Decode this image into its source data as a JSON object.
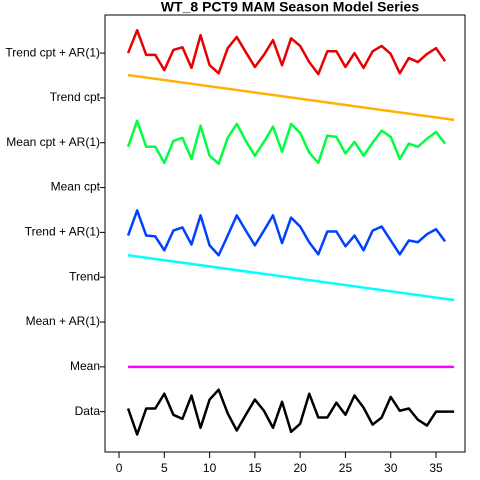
{
  "chart_data": {
    "type": "line",
    "title": "WT_8 PCT9 MAM Season Model Series",
    "xlim": [
      -1.55,
      38.2
    ],
    "xticks": [
      0,
      5,
      10,
      15,
      20,
      25,
      30,
      35
    ],
    "ylim": [
      0.1,
      9.85
    ],
    "yticks": [
      {
        "value": 1,
        "label": "Data"
      },
      {
        "value": 2,
        "label": "Mean"
      },
      {
        "value": 3,
        "label": "Mean + AR(1)"
      },
      {
        "value": 4,
        "label": "Trend"
      },
      {
        "value": 5,
        "label": "Trend + AR(1)"
      },
      {
        "value": 6,
        "label": "Mean cpt"
      },
      {
        "value": 7,
        "label": "Mean cpt + AR(1)"
      },
      {
        "value": 8,
        "label": "Trend cpt"
      },
      {
        "value": 9,
        "label": "Trend cpt + AR(1)"
      }
    ],
    "series": [
      {
        "name": "Data",
        "color": "#000000",
        "x": [
          1,
          2,
          3,
          4,
          5,
          6,
          7,
          8,
          9,
          10,
          11,
          12,
          13,
          14,
          15,
          16,
          17,
          18,
          19,
          20,
          21,
          22,
          23,
          24,
          25,
          26,
          27,
          28,
          29,
          30,
          31,
          32,
          33,
          34,
          35,
          36,
          37
        ],
        "values": [
          1.07,
          0.49,
          1.07,
          1.07,
          1.4,
          0.93,
          0.84,
          1.36,
          0.64,
          1.27,
          1.49,
          0.96,
          0.58,
          0.93,
          1.27,
          1.02,
          0.64,
          1.22,
          0.55,
          0.73,
          1.4,
          0.87,
          0.87,
          1.2,
          0.93,
          1.36,
          1.09,
          0.71,
          0.87,
          1.33,
          1.02,
          1.07,
          0.82,
          0.69,
          1.0,
          1.0,
          1.0
        ]
      },
      {
        "name": "Mean",
        "color": "#ff00ff",
        "x": [
          1,
          37
        ],
        "values": [
          2,
          2
        ]
      },
      {
        "name": "Trend",
        "color": "#00ffff",
        "x": [
          1,
          37
        ],
        "values": [
          4.49,
          3.49
        ]
      },
      {
        "name": "Trend + AR(1)",
        "color": "#0040ff",
        "x": [
          1,
          2,
          3,
          4,
          5,
          6,
          7,
          8,
          9,
          10,
          11,
          12,
          13,
          14,
          15,
          16,
          17,
          18,
          19,
          20,
          21,
          22,
          23,
          24,
          25,
          26,
          27,
          28,
          29,
          30,
          31,
          32,
          33,
          34,
          35,
          36
        ],
        "values": [
          4.93,
          5.49,
          4.93,
          4.91,
          4.6,
          5.04,
          5.11,
          4.73,
          5.38,
          4.71,
          4.49,
          4.93,
          5.38,
          5.04,
          4.71,
          5.04,
          5.38,
          4.76,
          5.33,
          5.13,
          4.78,
          4.51,
          5.02,
          5.02,
          4.69,
          4.93,
          4.6,
          5.04,
          5.13,
          4.82,
          4.51,
          4.82,
          4.78,
          4.96,
          5.07,
          4.8
        ]
      },
      {
        "name": "Mean cpt + AR(1)",
        "color": "#00ff40",
        "x": [
          1,
          2,
          3,
          4,
          5,
          6,
          7,
          8,
          9,
          10,
          11,
          12,
          13,
          14,
          15,
          16,
          17,
          18,
          19,
          20,
          21,
          22,
          23,
          24,
          25,
          26,
          27,
          28,
          29,
          30,
          31,
          32,
          33,
          34,
          35,
          36
        ],
        "values": [
          6.91,
          7.49,
          6.91,
          6.91,
          6.55,
          7.04,
          7.11,
          6.64,
          7.38,
          6.71,
          6.53,
          7.11,
          7.42,
          7.04,
          6.71,
          7.02,
          7.36,
          6.8,
          7.42,
          7.22,
          6.78,
          6.55,
          7.16,
          7.13,
          6.76,
          7.02,
          6.71,
          7.0,
          7.27,
          7.13,
          6.64,
          6.98,
          6.91,
          7.09,
          7.24,
          6.98
        ]
      },
      {
        "name": "Trend cpt",
        "color": "#ffb000",
        "x": [
          1,
          37
        ],
        "values": [
          8.51,
          7.51
        ]
      },
      {
        "name": "Trend cpt + AR(1)",
        "color": "#e80000",
        "x": [
          1,
          2,
          3,
          4,
          5,
          6,
          7,
          8,
          9,
          10,
          11,
          12,
          13,
          14,
          15,
          16,
          17,
          18,
          19,
          20,
          21,
          22,
          23,
          24,
          25,
          26,
          27,
          28,
          29,
          30,
          31,
          32,
          33,
          34,
          35,
          36
        ],
        "values": [
          9.0,
          9.51,
          8.96,
          8.96,
          8.62,
          9.07,
          9.13,
          8.67,
          9.4,
          8.73,
          8.55,
          9.11,
          9.36,
          9.02,
          8.69,
          8.96,
          9.29,
          8.73,
          9.33,
          9.16,
          8.8,
          8.53,
          9.04,
          9.04,
          8.69,
          9.0,
          8.67,
          9.04,
          9.16,
          8.98,
          8.55,
          8.89,
          8.8,
          8.98,
          9.11,
          8.82
        ]
      }
    ]
  }
}
